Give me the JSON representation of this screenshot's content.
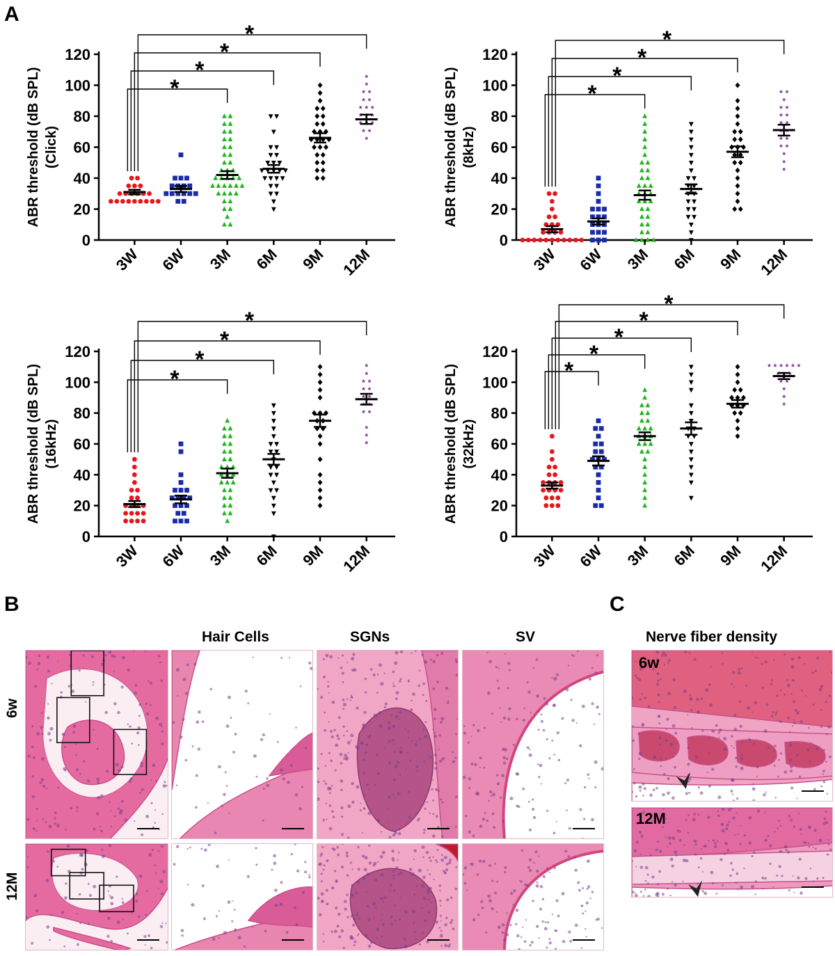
{
  "panels": {
    "a": "A",
    "b": "B",
    "c": "C"
  },
  "histology": {
    "col_headers": [
      "Hair Cells",
      "SGNs",
      "SV"
    ],
    "row_labels": [
      "6w",
      "12M"
    ],
    "nerve_title": "Nerve fiber density",
    "nerve_labels": [
      "6w",
      "12M"
    ]
  },
  "colors": {
    "3W": "#e8141e",
    "6W": "#1a2aa8",
    "3M": "#1eb41e",
    "6M": "#000000",
    "9M": "#000000",
    "12M": "#7a2a8c"
  },
  "markers": {
    "3W": "circle",
    "6W": "square",
    "3M": "triangle-up",
    "6M": "triangle-down",
    "9M": "diamond",
    "12M": "star"
  },
  "chart_data": [
    {
      "type": "scatter",
      "ylabel_line1": "ABR threshold (dB  SPL)",
      "ylabel_line2": "(Click)",
      "categories": [
        "3W",
        "6W",
        "3M",
        "6M",
        "9M",
        "12M"
      ],
      "ylim": [
        0,
        120
      ],
      "yticks": [
        0,
        20,
        40,
        60,
        80,
        100,
        120
      ],
      "means": [
        31,
        33,
        42,
        46,
        66,
        78
      ],
      "sem": [
        1.5,
        2.0,
        2.5,
        2.5,
        3.0,
        3.0
      ],
      "significance": [
        "3M",
        "6M",
        "9M",
        "12M"
      ],
      "sig_mark": "*",
      "points": [
        [
          25,
          25,
          25,
          25,
          25,
          25,
          25,
          25,
          25,
          30,
          30,
          30,
          30,
          30,
          30,
          35,
          35,
          35,
          40,
          40
        ],
        [
          25,
          25,
          30,
          30,
          30,
          30,
          30,
          30,
          35,
          35,
          35,
          35,
          40,
          40,
          40,
          55
        ],
        [
          10,
          10,
          15,
          20,
          20,
          25,
          25,
          30,
          30,
          30,
          30,
          35,
          35,
          35,
          35,
          35,
          35,
          40,
          40,
          40,
          40,
          40,
          45,
          45,
          45,
          50,
          50,
          55,
          55,
          60,
          60,
          65,
          65,
          70,
          70,
          75,
          75,
          80,
          80
        ],
        [
          20,
          25,
          30,
          30,
          35,
          35,
          40,
          40,
          40,
          40,
          45,
          45,
          45,
          45,
          45,
          50,
          50,
          50,
          55,
          55,
          60,
          60,
          70,
          80,
          80
        ],
        [
          40,
          40,
          45,
          45,
          50,
          50,
          55,
          55,
          60,
          60,
          60,
          65,
          65,
          65,
          65,
          70,
          70,
          70,
          75,
          75,
          80,
          80,
          85,
          85,
          90,
          95,
          100
        ],
        [
          65,
          70,
          70,
          75,
          75,
          75,
          80,
          80,
          80,
          85,
          85,
          85,
          90,
          90,
          95,
          95,
          100,
          105
        ]
      ]
    },
    {
      "type": "scatter",
      "ylabel_line1": "ABR threshold (dB  SPL)",
      "ylabel_line2": "(8kHz)",
      "categories": [
        "3W",
        "6W",
        "3M",
        "6M",
        "9M",
        "12M"
      ],
      "ylim": [
        0,
        120
      ],
      "yticks": [
        0,
        20,
        40,
        60,
        80,
        100,
        120
      ],
      "means": [
        7,
        12,
        29,
        33,
        57,
        71
      ],
      "sem": [
        2.0,
        2.0,
        3.0,
        3.0,
        3.5,
        3.5
      ],
      "significance": [
        "3M",
        "6M",
        "9M",
        "12M"
      ],
      "sig_mark": "*",
      "points": [
        [
          0,
          0,
          0,
          0,
          0,
          0,
          0,
          0,
          0,
          0,
          0,
          5,
          5,
          5,
          5,
          10,
          10,
          10,
          15,
          15,
          20,
          25,
          30,
          30
        ],
        [
          0,
          0,
          0,
          5,
          5,
          5,
          10,
          10,
          10,
          15,
          15,
          15,
          20,
          20,
          20,
          25,
          30,
          35,
          40
        ],
        [
          0,
          0,
          0,
          0,
          5,
          5,
          10,
          10,
          15,
          15,
          20,
          20,
          25,
          25,
          25,
          30,
          30,
          30,
          35,
          35,
          35,
          40,
          40,
          45,
          45,
          50,
          50,
          55,
          60,
          65,
          70,
          75,
          80
        ],
        [
          0,
          5,
          10,
          15,
          15,
          20,
          20,
          25,
          25,
          30,
          30,
          35,
          35,
          40,
          40,
          45,
          50,
          55,
          60,
          65,
          70,
          75
        ],
        [
          20,
          20,
          25,
          30,
          35,
          40,
          45,
          50,
          50,
          55,
          55,
          60,
          60,
          60,
          65,
          65,
          70,
          70,
          75,
          80,
          85,
          90,
          100
        ],
        [
          45,
          50,
          55,
          60,
          60,
          65,
          65,
          70,
          70,
          75,
          75,
          80,
          80,
          85,
          85,
          90,
          95,
          95
        ]
      ]
    },
    {
      "type": "scatter",
      "ylabel_line1": "ABR threshold (dB  SPL)",
      "ylabel_line2": "(16kHz)",
      "categories": [
        "3W",
        "6W",
        "3M",
        "6M",
        "9M",
        "12M"
      ],
      "ylim": [
        0,
        120
      ],
      "yticks": [
        0,
        20,
        40,
        60,
        80,
        100,
        120
      ],
      "means": [
        21,
        24,
        41,
        50,
        75,
        89
      ],
      "sem": [
        2.0,
        2.5,
        3.0,
        3.5,
        4.0,
        3.5
      ],
      "significance": [
        "3M",
        "6M",
        "9M",
        "12M"
      ],
      "sig_mark": "*",
      "points": [
        [
          10,
          10,
          10,
          10,
          15,
          15,
          15,
          15,
          20,
          20,
          20,
          20,
          25,
          25,
          30,
          30,
          35,
          40,
          45,
          50
        ],
        [
          10,
          10,
          10,
          15,
          15,
          20,
          20,
          20,
          25,
          25,
          25,
          25,
          30,
          30,
          30,
          35,
          40,
          55,
          60
        ],
        [
          10,
          15,
          15,
          20,
          20,
          25,
          25,
          30,
          30,
          35,
          35,
          35,
          40,
          40,
          40,
          45,
          45,
          45,
          50,
          50,
          55,
          55,
          60,
          60,
          65,
          65,
          70,
          70,
          75
        ],
        [
          0,
          15,
          20,
          25,
          30,
          30,
          35,
          40,
          40,
          45,
          45,
          50,
          55,
          55,
          60,
          60,
          65,
          70,
          75,
          80,
          85
        ],
        [
          20,
          25,
          30,
          35,
          40,
          50,
          60,
          65,
          70,
          70,
          75,
          75,
          80,
          80,
          80,
          90,
          95,
          100,
          105,
          110
        ],
        [
          60,
          65,
          70,
          80,
          80,
          85,
          85,
          90,
          90,
          95,
          95,
          100,
          100,
          105,
          110
        ]
      ]
    },
    {
      "type": "scatter",
      "ylabel_line1": "ABR threshold (dB  SPL)",
      "ylabel_line2": "(32kHz)",
      "categories": [
        "3W",
        "6W",
        "3M",
        "6M",
        "9M",
        "12M"
      ],
      "ylim": [
        0,
        120
      ],
      "yticks": [
        0,
        20,
        40,
        60,
        80,
        100,
        120
      ],
      "means": [
        33,
        49,
        65,
        70,
        86,
        104
      ],
      "sem": [
        2.0,
        3.0,
        2.5,
        4.0,
        2.5,
        2.0
      ],
      "significance": [
        "6W",
        "3M",
        "6M",
        "9M",
        "12M"
      ],
      "sig_mark": "*",
      "points": [
        [
          20,
          20,
          20,
          25,
          25,
          25,
          30,
          30,
          30,
          30,
          35,
          35,
          35,
          35,
          40,
          40,
          45,
          45,
          50,
          55,
          65
        ],
        [
          20,
          20,
          25,
          30,
          35,
          40,
          45,
          45,
          50,
          50,
          50,
          55,
          55,
          60,
          60,
          65,
          70,
          70,
          75
        ],
        [
          20,
          25,
          30,
          35,
          40,
          45,
          50,
          55,
          55,
          60,
          60,
          60,
          65,
          65,
          65,
          70,
          70,
          70,
          75,
          75,
          80,
          80,
          85,
          85,
          90,
          95
        ],
        [
          25,
          35,
          40,
          45,
          50,
          55,
          60,
          65,
          65,
          70,
          70,
          75,
          80,
          85,
          95,
          100,
          105,
          110
        ],
        [
          65,
          70,
          75,
          80,
          80,
          85,
          85,
          85,
          90,
          90,
          90,
          95,
          95,
          100,
          105,
          110
        ],
        [
          85,
          90,
          95,
          100,
          100,
          105,
          105,
          105,
          110,
          110,
          110,
          110,
          110,
          110
        ]
      ]
    }
  ]
}
